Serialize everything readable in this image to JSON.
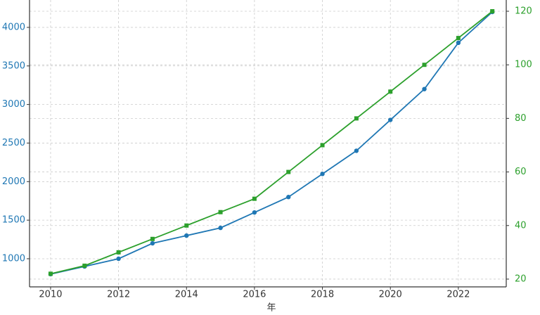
{
  "chart_data": {
    "type": "line",
    "x": [
      2010,
      2011,
      2012,
      2013,
      2014,
      2015,
      2016,
      2017,
      2018,
      2019,
      2020,
      2021,
      2022,
      2023
    ],
    "xlabel": "年",
    "series": [
      {
        "color": "#1f77b4",
        "marker": "circle",
        "values": [
          800,
          900,
          1000,
          1200,
          1300,
          1400,
          1600,
          1800,
          2100,
          2400,
          2800,
          3200,
          3800,
          4200
        ]
      },
      {
        "color": "#2ca02c",
        "marker": "square",
        "axis": "y2",
        "values": [
          22,
          25,
          30,
          35,
          40,
          45,
          50,
          60,
          70,
          80,
          90,
          100,
          110,
          120
        ]
      }
    ],
    "xlim": [
      2009.38,
      2023.41
    ],
    "xticks": [
      2010,
      2012,
      2014,
      2016,
      2018,
      2020,
      2022
    ],
    "ylim": [
      635,
      4355
    ],
    "yticks": [
      1000,
      1500,
      2000,
      2500,
      3000,
      3500,
      4000
    ],
    "y2lim": [
      17.1,
      124.2
    ],
    "y2ticks": [
      20,
      40,
      60,
      80,
      100,
      120
    ],
    "grid": true
  }
}
